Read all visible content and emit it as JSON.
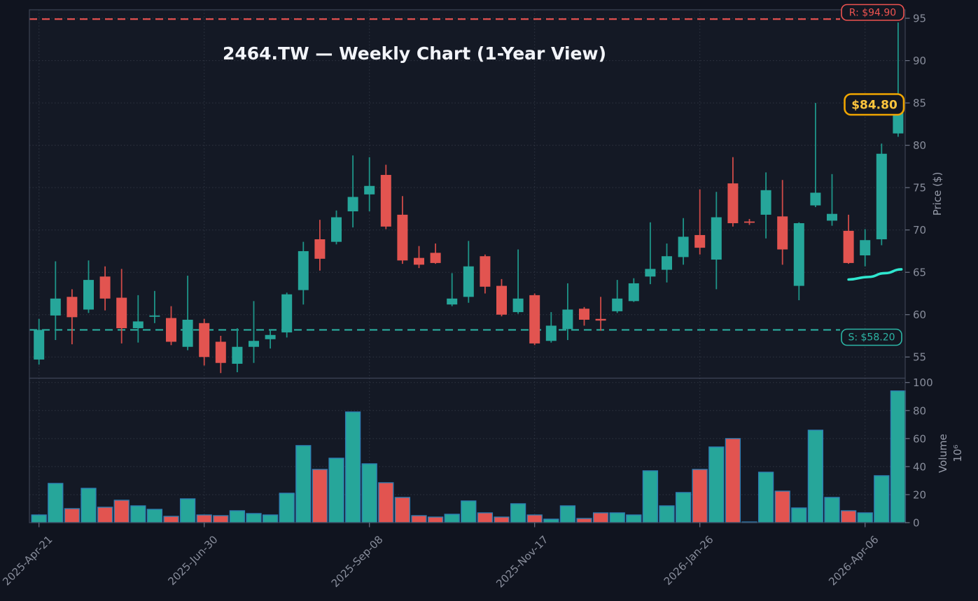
{
  "title": "2464.TW — Weekly Chart (1-Year View)",
  "chart_data": {
    "type": "candlestick",
    "symbol": "2464.TW",
    "timeframe": "Weekly",
    "view": "1-Year View",
    "legend_position": "none",
    "grid": "dotted",
    "price_axis": {
      "label": "Price ($)",
      "ticks": [
        55,
        60,
        65,
        70,
        75,
        80,
        85,
        90,
        95
      ],
      "range": [
        52.5,
        96
      ]
    },
    "volume_axis": {
      "label": "Volume",
      "unit": "10⁶",
      "ticks": [
        0,
        20,
        40,
        60,
        80,
        100
      ],
      "range": [
        0,
        103.1
      ]
    },
    "x_axis": {
      "tick_labels": [
        "2025-Apr-21",
        "2025-Jun-30",
        "2025-Sep-08",
        "2025-Nov-17",
        "2026-Jan-26",
        "2026-Apr-06"
      ],
      "tick_indices": [
        0,
        10,
        20,
        30,
        40,
        50
      ]
    },
    "annotations": {
      "resistance": {
        "label": "R: $94.90",
        "value": 94.9,
        "color": "#ef5350"
      },
      "support": {
        "label": "S: $58.20",
        "value": 58.2,
        "color": "#2cb5a5"
      },
      "last_price": {
        "label": "$84.80",
        "value": 84.8,
        "text_color": "#ffc53d",
        "border_color": "#f0a500"
      },
      "trend_curve": {
        "color": "#2fe6cf",
        "points": [
          [
            49.0,
            64.15
          ],
          [
            50.2,
            64.45
          ],
          [
            51.2,
            64.9
          ],
          [
            52.2,
            65.35
          ]
        ]
      }
    },
    "colors": {
      "up": "#26a69a",
      "down": "#e25450",
      "up_wick": "#1d9488",
      "down_wick": "#cf4a47",
      "volume_edge": "#2d7eb5",
      "background": "#10141f",
      "panel": "#141925",
      "gridline": "#2f3542",
      "spine": "#3c4354"
    },
    "candles": [
      {
        "date": "2025-04-21",
        "open": 54.7,
        "high": 59.5,
        "low": 54.1,
        "close": 58.2,
        "volume": 5.5
      },
      {
        "date": "2025-04-28",
        "open": 59.9,
        "high": 66.3,
        "low": 57.0,
        "close": 61.9,
        "volume": 28
      },
      {
        "date": "2025-05-05",
        "open": 62.1,
        "high": 63.0,
        "low": 56.5,
        "close": 59.7,
        "volume": 10
      },
      {
        "date": "2025-05-12",
        "open": 60.6,
        "high": 66.4,
        "low": 60.2,
        "close": 64.1,
        "volume": 24.5
      },
      {
        "date": "2025-05-19",
        "open": 64.5,
        "high": 65.7,
        "low": 60.5,
        "close": 61.9,
        "volume": 11
      },
      {
        "date": "2025-05-26",
        "open": 62.0,
        "high": 65.4,
        "low": 56.6,
        "close": 58.4,
        "volume": 16
      },
      {
        "date": "2025-06-02",
        "open": 58.4,
        "high": 62.3,
        "low": 56.7,
        "close": 59.2,
        "volume": 12
      },
      {
        "date": "2025-06-09",
        "open": 59.8,
        "high": 62.8,
        "low": 59.0,
        "close": 59.9,
        "volume": 9.5
      },
      {
        "date": "2025-06-16",
        "open": 59.6,
        "high": 61.0,
        "low": 56.4,
        "close": 56.8,
        "volume": 4.5
      },
      {
        "date": "2025-06-23",
        "open": 56.2,
        "high": 64.6,
        "low": 55.8,
        "close": 59.4,
        "volume": 17
      },
      {
        "date": "2025-06-30",
        "open": 59.0,
        "high": 59.5,
        "low": 54.0,
        "close": 55.0,
        "volume": 5.5
      },
      {
        "date": "2025-07-07",
        "open": 56.8,
        "high": 57.5,
        "low": 53.1,
        "close": 54.3,
        "volume": 5
      },
      {
        "date": "2025-07-14",
        "open": 54.2,
        "high": 58.4,
        "low": 53.2,
        "close": 56.2,
        "volume": 8.5
      },
      {
        "date": "2025-07-21",
        "open": 56.2,
        "high": 61.6,
        "low": 54.3,
        "close": 56.9,
        "volume": 6.5
      },
      {
        "date": "2025-07-28",
        "open": 57.1,
        "high": 58.2,
        "low": 56.0,
        "close": 57.6,
        "volume": 5.5
      },
      {
        "date": "2025-08-04",
        "open": 57.9,
        "high": 62.6,
        "low": 57.3,
        "close": 62.4,
        "volume": 21
      },
      {
        "date": "2025-08-11",
        "open": 62.9,
        "high": 68.6,
        "low": 61.2,
        "close": 67.5,
        "volume": 55
      },
      {
        "date": "2025-08-18",
        "open": 68.9,
        "high": 71.2,
        "low": 65.2,
        "close": 66.6,
        "volume": 38
      },
      {
        "date": "2025-08-25",
        "open": 68.6,
        "high": 72.3,
        "low": 68.3,
        "close": 71.5,
        "volume": 46
      },
      {
        "date": "2025-09-01",
        "open": 72.2,
        "high": 78.8,
        "low": 70.3,
        "close": 73.9,
        "volume": 79
      },
      {
        "date": "2025-09-08",
        "open": 74.2,
        "high": 78.6,
        "low": 72.2,
        "close": 75.2,
        "volume": 42
      },
      {
        "date": "2025-09-15",
        "open": 76.5,
        "high": 77.7,
        "low": 70.1,
        "close": 70.4,
        "volume": 28.5
      },
      {
        "date": "2025-09-22",
        "open": 71.8,
        "high": 74.0,
        "low": 66.0,
        "close": 66.4,
        "volume": 18
      },
      {
        "date": "2025-09-29",
        "open": 66.7,
        "high": 68.1,
        "low": 65.5,
        "close": 65.9,
        "volume": 5
      },
      {
        "date": "2025-10-06",
        "open": 67.3,
        "high": 68.4,
        "low": 66.0,
        "close": 66.1,
        "volume": 4
      },
      {
        "date": "2025-10-13",
        "open": 61.2,
        "high": 64.9,
        "low": 61.0,
        "close": 61.9,
        "volume": 6
      },
      {
        "date": "2025-10-20",
        "open": 62.1,
        "high": 68.7,
        "low": 61.4,
        "close": 65.7,
        "volume": 15.5
      },
      {
        "date": "2025-10-27",
        "open": 66.9,
        "high": 67.1,
        "low": 62.5,
        "close": 63.3,
        "volume": 7
      },
      {
        "date": "2025-11-03",
        "open": 63.4,
        "high": 64.2,
        "low": 59.8,
        "close": 60.0,
        "volume": 4
      },
      {
        "date": "2025-11-10",
        "open": 60.3,
        "high": 67.7,
        "low": 60.1,
        "close": 61.9,
        "volume": 13.5
      },
      {
        "date": "2025-11-17",
        "open": 62.3,
        "high": 62.5,
        "low": 56.4,
        "close": 56.6,
        "volume": 5.5
      },
      {
        "date": "2025-11-24",
        "open": 56.9,
        "high": 60.3,
        "low": 56.7,
        "close": 58.7,
        "volume": 2.5
      },
      {
        "date": "2025-12-01",
        "open": 58.3,
        "high": 63.7,
        "low": 57.0,
        "close": 60.6,
        "volume": 12
      },
      {
        "date": "2025-12-08",
        "open": 60.7,
        "high": 60.9,
        "low": 58.7,
        "close": 59.4,
        "volume": 3
      },
      {
        "date": "2025-12-15",
        "open": 59.5,
        "high": 62.1,
        "low": 58.1,
        "close": 59.3,
        "volume": 7
      },
      {
        "date": "2025-12-22",
        "open": 60.4,
        "high": 64.1,
        "low": 60.2,
        "close": 61.9,
        "volume": 7
      },
      {
        "date": "2025-12-29",
        "open": 61.6,
        "high": 64.3,
        "low": 61.5,
        "close": 63.7,
        "volume": 5.5
      },
      {
        "date": "2026-01-05",
        "open": 64.5,
        "high": 70.9,
        "low": 63.6,
        "close": 65.4,
        "volume": 37
      },
      {
        "date": "2026-01-12",
        "open": 65.3,
        "high": 68.4,
        "low": 63.8,
        "close": 66.9,
        "volume": 12
      },
      {
        "date": "2026-01-19",
        "open": 66.8,
        "high": 71.4,
        "low": 65.9,
        "close": 69.2,
        "volume": 21.5
      },
      {
        "date": "2026-01-26",
        "open": 69.4,
        "high": 74.8,
        "low": 67.1,
        "close": 67.9,
        "volume": 38
      },
      {
        "date": "2026-02-02",
        "open": 66.5,
        "high": 74.5,
        "low": 63.0,
        "close": 71.5,
        "volume": 54
      },
      {
        "date": "2026-02-09",
        "open": 75.5,
        "high": 78.6,
        "low": 70.4,
        "close": 70.8,
        "volume": 60
      },
      {
        "date": "2026-02-16",
        "open": 71.0,
        "high": 71.3,
        "low": 70.6,
        "close": 70.9,
        "volume": 0.5
      },
      {
        "date": "2026-02-23",
        "open": 71.8,
        "high": 76.8,
        "low": 69.0,
        "close": 74.7,
        "volume": 36
      },
      {
        "date": "2026-03-02",
        "open": 71.6,
        "high": 75.9,
        "low": 65.9,
        "close": 67.7,
        "volume": 22.5
      },
      {
        "date": "2026-03-09",
        "open": 63.4,
        "high": 70.9,
        "low": 61.7,
        "close": 70.8,
        "volume": 10.5
      },
      {
        "date": "2026-03-16",
        "open": 72.9,
        "high": 85.0,
        "low": 72.7,
        "close": 74.4,
        "volume": 66
      },
      {
        "date": "2026-03-23",
        "open": 71.1,
        "high": 76.6,
        "low": 70.5,
        "close": 71.9,
        "volume": 18
      },
      {
        "date": "2026-03-30",
        "open": 69.9,
        "high": 71.8,
        "low": 66.0,
        "close": 66.1,
        "volume": 8.5
      },
      {
        "date": "2026-04-06",
        "open": 67.0,
        "high": 70.1,
        "low": 65.7,
        "close": 68.8,
        "volume": 7
      },
      {
        "date": "2026-04-13",
        "open": 68.9,
        "high": 80.2,
        "low": 68.2,
        "close": 79.0,
        "volume": 33.5
      },
      {
        "date": "2026-04-20",
        "open": 81.4,
        "high": 94.5,
        "low": 81.0,
        "close": 84.8,
        "volume": 94
      }
    ]
  }
}
